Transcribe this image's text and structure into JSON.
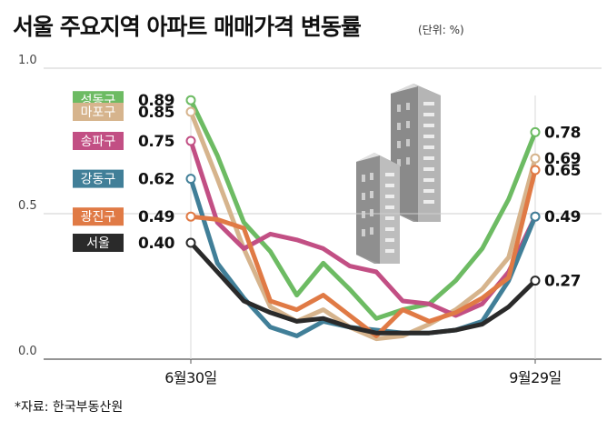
{
  "title": "서울 주요지역 아파트 매매가격 변동률",
  "unit_label": "(단위: %)",
  "source": "*자료: 한국부동산원",
  "chart_data": {
    "type": "line",
    "title": "서울 주요지역 아파트 매매가격 변동률",
    "ylim": [
      0.0,
      1.0
    ],
    "yticks": [
      "0.0",
      "0.5",
      "1.0"
    ],
    "ytick_values": [
      0.0,
      0.5,
      1.0
    ],
    "x_labels": [
      "6월30일",
      "9월29일"
    ],
    "x_label_index": [
      0,
      13
    ],
    "grid": true,
    "series": [
      {
        "name": "성동구",
        "color": "#6dbb63",
        "start_label": "0.89",
        "end_label": "0.78",
        "values": [
          0.89,
          0.7,
          0.47,
          0.37,
          0.22,
          0.33,
          0.24,
          0.14,
          0.17,
          0.19,
          0.27,
          0.38,
          0.55,
          0.78
        ]
      },
      {
        "name": "마포구",
        "color": "#d6b48d",
        "start_label": "0.85",
        "end_label": "0.69",
        "values": [
          0.85,
          0.62,
          0.38,
          0.18,
          0.13,
          0.17,
          0.11,
          0.07,
          0.08,
          0.12,
          0.17,
          0.24,
          0.35,
          0.69
        ]
      },
      {
        "name": "송파구",
        "color": "#c24f84",
        "start_label": "0.75",
        "end_label": "0.49",
        "values": [
          0.75,
          0.47,
          0.38,
          0.43,
          0.41,
          0.38,
          0.32,
          0.3,
          0.2,
          0.19,
          0.15,
          0.19,
          0.3,
          0.49
        ]
      },
      {
        "name": "강동구",
        "color": "#417f98",
        "start_label": "0.62",
        "end_label": "0.49",
        "values": [
          0.62,
          0.33,
          0.21,
          0.11,
          0.08,
          0.13,
          0.11,
          0.1,
          0.09,
          0.09,
          0.1,
          0.13,
          0.27,
          0.49
        ]
      },
      {
        "name": "광진구",
        "color": "#e07a45",
        "start_label": "0.49",
        "end_label": "0.65",
        "values": [
          0.49,
          0.48,
          0.45,
          0.2,
          0.17,
          0.22,
          0.15,
          0.08,
          0.17,
          0.13,
          0.16,
          0.21,
          0.28,
          0.65
        ]
      },
      {
        "name": "서울",
        "color": "#2a2a2a",
        "start_label": "0.40",
        "end_label": "0.27",
        "values": [
          0.4,
          0.3,
          0.2,
          0.16,
          0.13,
          0.14,
          0.11,
          0.09,
          0.09,
          0.09,
          0.1,
          0.12,
          0.18,
          0.27
        ]
      }
    ]
  }
}
